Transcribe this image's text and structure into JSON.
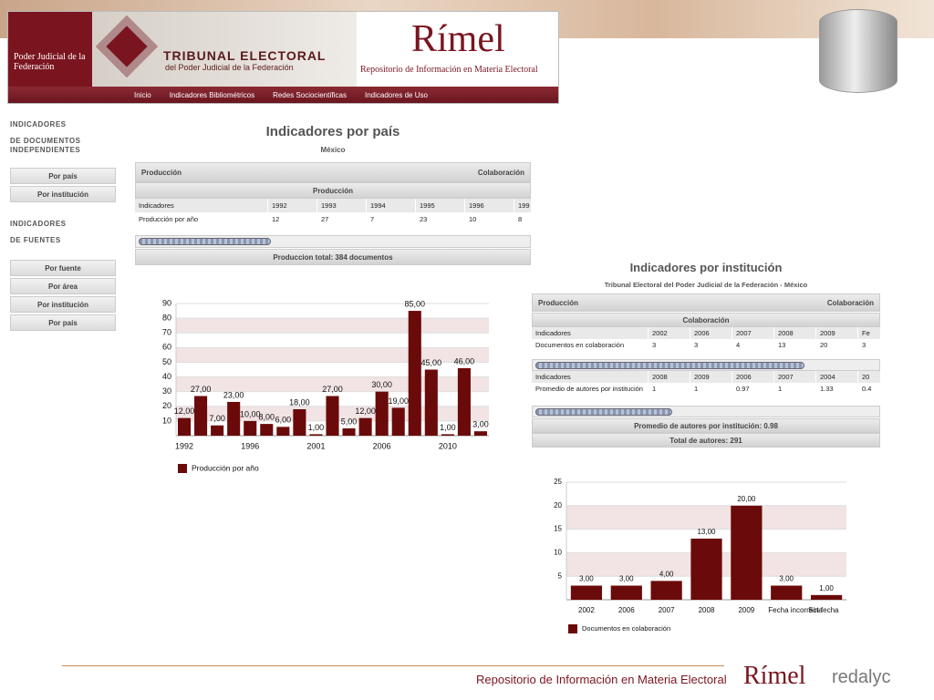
{
  "header": {
    "seal_text": "Poder Judicial de la Federación",
    "tribunal": "TRIBUNAL ELECTORAL",
    "tribunal_sub": "del Poder Judicial de la Federación",
    "brand": "Rímel",
    "brand_sub": "Repositorio de Información en Materia Electoral"
  },
  "nav": [
    "Inicio",
    "Indicadores Bibliométricos",
    "Redes Sociocientíficas",
    "Indicadores de Uso"
  ],
  "sidebar": {
    "group1": {
      "title": "INDICADORES",
      "subtitle": "DE DOCUMENTOS INDEPENDIENTES",
      "buttons": [
        "Por país",
        "Por institución"
      ]
    },
    "group2": {
      "title": "INDICADORES",
      "subtitle": "DE FUENTES",
      "buttons": [
        "Por fuente",
        "Por área",
        "Por institución",
        "Por país"
      ]
    }
  },
  "panel1": {
    "title": "Indicadores por país",
    "subtitle": "México",
    "tab_left": "Producción",
    "tab_right": "Colaboración",
    "section": "Producción",
    "table": {
      "rows": [
        [
          "Indicadores",
          "1992",
          "1993",
          "1994",
          "1995",
          "1996",
          "199"
        ],
        [
          "Producción por año",
          "12",
          "27",
          "7",
          "23",
          "10",
          "8"
        ]
      ]
    },
    "total": "Produccion total: 384 documentos"
  },
  "panel2": {
    "title": "Indicadores por institución",
    "subtitle": "Tribunal Electoral del Poder Judicial de la Federación - México",
    "tab_left": "Producción",
    "tab_right": "Colaboración",
    "section": "Colaboración",
    "table1": {
      "rows": [
        [
          "Indicadores",
          "2002",
          "2006",
          "2007",
          "2008",
          "2009",
          "Fe"
        ],
        [
          "Documentos en colaboración",
          "3",
          "3",
          "4",
          "13",
          "20",
          "3"
        ]
      ]
    },
    "table2": {
      "rows": [
        [
          "Indicadores",
          "2008",
          "2009",
          "2006",
          "2007",
          "2004",
          "20"
        ],
        [
          "Promedio de autores por institución",
          "1",
          "1",
          "0.97",
          "1",
          "1.33",
          "0.4"
        ]
      ]
    },
    "average": "Promedio de autores por institución: 0.98",
    "total": "Total de autores: 291"
  },
  "chart_data": [
    {
      "type": "bar",
      "categories": [
        "1992",
        null,
        null,
        null,
        "1996",
        null,
        null,
        null,
        "2001",
        null,
        null,
        null,
        "2006",
        null,
        null,
        null,
        "2010",
        null,
        null
      ],
      "series": [
        {
          "name": "Producción por año",
          "color": "#6b0a0a",
          "values": [
            12,
            27,
            7,
            23,
            10,
            8,
            6,
            18,
            1,
            27,
            5,
            12,
            30,
            19,
            85,
            45,
            1,
            46,
            3
          ],
          "value_labels": [
            "12,00",
            "27,00",
            "7,00",
            "23,00",
            "10,00",
            "8,00",
            "6,00",
            "18,00",
            "1,00",
            "27,00",
            "5,00",
            "12,00",
            "30,00",
            "19,00",
            "85,00",
            "45,00",
            "1,00",
            "46,00",
            "3,00"
          ]
        }
      ],
      "ylim": [
        0,
        90
      ],
      "yticks": [
        10,
        20,
        30,
        40,
        50,
        60,
        70,
        80,
        90
      ],
      "grid": true
    },
    {
      "type": "bar",
      "categories": [
        "2002",
        "2006",
        "2007",
        "2008",
        "2009",
        "Fecha incorrecta",
        "Sin fecha"
      ],
      "series": [
        {
          "name": "Documentos en colaboración",
          "color": "#6b0a0a",
          "values": [
            3,
            3,
            4,
            13,
            20,
            3,
            1
          ],
          "value_labels": [
            "3,00",
            "3,00",
            "4,00",
            "13,00",
            "20,00",
            "3,00",
            "1,00"
          ]
        }
      ],
      "ylim": [
        0,
        25
      ],
      "yticks": [
        5,
        10,
        15,
        20,
        25
      ],
      "grid": true
    }
  ],
  "footer": {
    "text": "Repositorio de Información en Materia Electoral",
    "brand": "Rímel",
    "partner": "redalyc"
  }
}
